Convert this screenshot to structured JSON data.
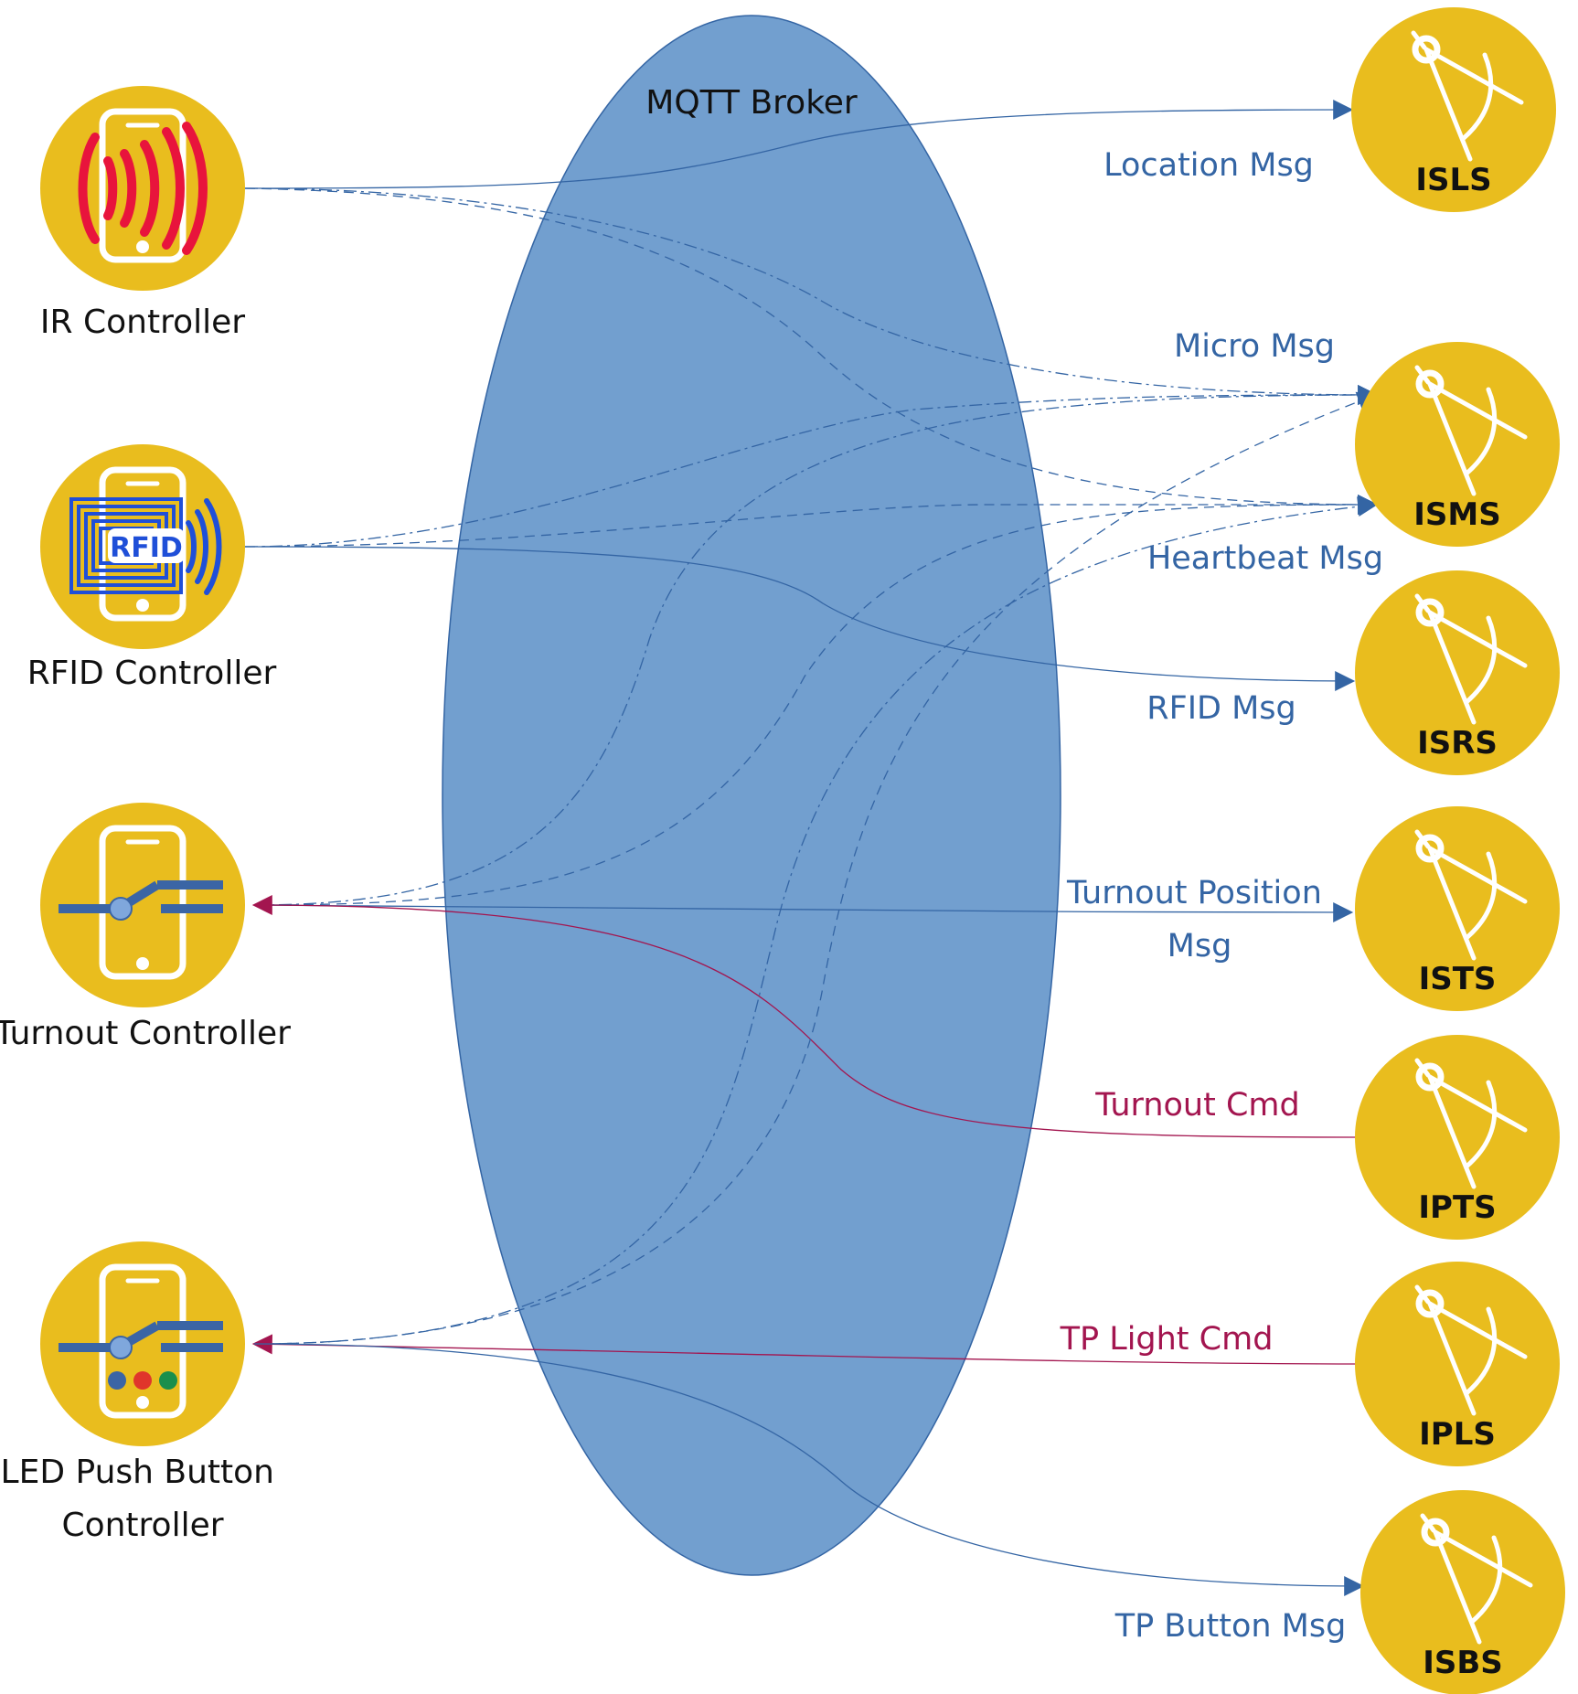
{
  "broker": {
    "label": "MQTT Broker",
    "fill": "#729fcf",
    "stroke": "#3465a4"
  },
  "colors": {
    "node_fill": "#e9bd1e",
    "phone_stroke": "#ffffff",
    "msg_blue": "#3465a4",
    "cmd_red": "#a3154f",
    "ir_red": "#e8143c",
    "rfid_blue": "#1f4fd8",
    "switch_blue": "#3b65a5",
    "led_blue": "#3b65a5",
    "led_red": "#e0352b",
    "led_green": "#1a8f4c"
  },
  "controllers": [
    {
      "id": "ir",
      "label_lines": [
        "IR Controller"
      ],
      "icon": "ir-phone-icon"
    },
    {
      "id": "rfid",
      "label_lines": [
        "RFID Controller"
      ],
      "icon": "rfid-phone-icon",
      "icon_text": "RFID"
    },
    {
      "id": "turnout",
      "label_lines": [
        "Turnout Controller"
      ],
      "icon": "turnout-switch-phone-icon"
    },
    {
      "id": "led",
      "label_lines": [
        "LED Push Button",
        "Controller"
      ],
      "icon": "led-push-button-phone-icon"
    }
  ],
  "servers": [
    {
      "id": "isls",
      "label": "ISLS",
      "icon": "compass-icon"
    },
    {
      "id": "isms",
      "label": "ISMS",
      "icon": "compass-icon"
    },
    {
      "id": "isrs",
      "label": "ISRS",
      "icon": "compass-icon"
    },
    {
      "id": "ists",
      "label": "ISTS",
      "icon": "compass-icon"
    },
    {
      "id": "ipts",
      "label": "IPTS",
      "icon": "compass-icon"
    },
    {
      "id": "ipls",
      "label": "IPLS",
      "icon": "compass-icon"
    },
    {
      "id": "isbs",
      "label": "ISBS",
      "icon": "compass-icon"
    }
  ],
  "message_labels": [
    {
      "id": "location",
      "lines": [
        "Location Msg"
      ],
      "kind": "msg"
    },
    {
      "id": "micro",
      "lines": [
        "Micro Msg"
      ],
      "kind": "msg"
    },
    {
      "id": "heartbeat",
      "lines": [
        "Heartbeat Msg"
      ],
      "kind": "msg"
    },
    {
      "id": "rfid",
      "lines": [
        "RFID Msg"
      ],
      "kind": "msg"
    },
    {
      "id": "turnout_position",
      "lines": [
        "Turnout Position",
        "Msg"
      ],
      "kind": "msg"
    },
    {
      "id": "turnout_cmd",
      "lines": [
        "Turnout Cmd"
      ],
      "kind": "cmd"
    },
    {
      "id": "tp_light_cmd",
      "lines": [
        "TP Light Cmd"
      ],
      "kind": "cmd"
    },
    {
      "id": "tp_button",
      "lines": [
        "TP Button Msg"
      ],
      "kind": "msg"
    }
  ],
  "edges": [
    {
      "from": "ir",
      "to": "isls",
      "style": "solid",
      "kind": "msg",
      "label": "location"
    },
    {
      "from": "ir",
      "to": "isms",
      "style": "dashdot",
      "kind": "msg",
      "label": "micro"
    },
    {
      "from": "ir",
      "to": "isms",
      "style": "dashed",
      "kind": "msg",
      "label": "heartbeat"
    },
    {
      "from": "rfid",
      "to": "isms",
      "style": "dashdot",
      "kind": "msg",
      "label": "micro"
    },
    {
      "from": "rfid",
      "to": "isms",
      "style": "dashed",
      "kind": "msg",
      "label": "heartbeat"
    },
    {
      "from": "rfid",
      "to": "isrs",
      "style": "solid",
      "kind": "msg",
      "label": "rfid"
    },
    {
      "from": "turnout",
      "to": "isms",
      "style": "dashdot",
      "kind": "msg",
      "label": "micro"
    },
    {
      "from": "turnout",
      "to": "isms",
      "style": "dashed",
      "kind": "msg",
      "label": "heartbeat"
    },
    {
      "from": "turnout",
      "to": "ists",
      "style": "solid",
      "kind": "msg",
      "label": "turnout_position"
    },
    {
      "from": "ipts",
      "to": "turnout",
      "style": "solid",
      "kind": "cmd",
      "label": "turnout_cmd"
    },
    {
      "from": "led",
      "to": "isms",
      "style": "dashdot",
      "kind": "msg",
      "label": "micro"
    },
    {
      "from": "led",
      "to": "isms",
      "style": "dashed",
      "kind": "msg",
      "label": "heartbeat"
    },
    {
      "from": "ipls",
      "to": "led",
      "style": "solid",
      "kind": "cmd",
      "label": "tp_light_cmd"
    },
    {
      "from": "led",
      "to": "isbs",
      "style": "solid",
      "kind": "msg",
      "label": "tp_button"
    }
  ]
}
